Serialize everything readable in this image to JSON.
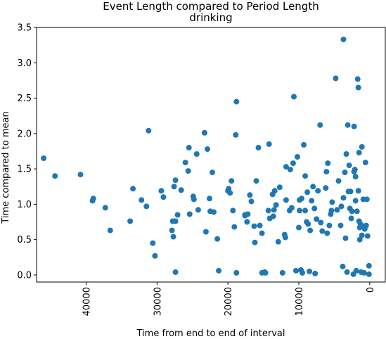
{
  "chart_data": {
    "type": "scatter",
    "title": "Event Length compared to Period Length",
    "subtitle": "drinking",
    "xlabel": "Time from end to end of interval",
    "ylabel": "Time compared to mean",
    "xlim": [
      47000,
      -2200
    ],
    "ylim": [
      -0.1,
      3.5
    ],
    "x_ticks": [
      40000,
      30000,
      20000,
      10000,
      0
    ],
    "x_tick_labels": [
      "40000",
      "30000",
      "20000",
      "10000",
      "0"
    ],
    "y_ticks": [
      0.0,
      0.5,
      1.0,
      1.5,
      2.0,
      2.5,
      3.0,
      3.5
    ],
    "y_tick_labels": [
      "0.0",
      "0.5",
      "1.0",
      "1.5",
      "2.0",
      "2.5",
      "3.0",
      "3.5"
    ],
    "marker_color": "#1f77b4",
    "grid": false,
    "points": [
      [
        46000,
        1.65
      ],
      [
        44400,
        1.4
      ],
      [
        40800,
        1.42
      ],
      [
        39000,
        1.08
      ],
      [
        39100,
        1.05
      ],
      [
        37300,
        0.95
      ],
      [
        36600,
        0.63
      ],
      [
        33800,
        0.76
      ],
      [
        33400,
        1.22
      ],
      [
        32200,
        1.06
      ],
      [
        31500,
        0.97
      ],
      [
        31200,
        2.04
      ],
      [
        30600,
        0.45
      ],
      [
        30300,
        0.27
      ],
      [
        29400,
        1.19
      ],
      [
        29100,
        1.1
      ],
      [
        27800,
        0.76
      ],
      [
        27900,
        0.63
      ],
      [
        27700,
        0.54
      ],
      [
        27600,
        1.25
      ],
      [
        27400,
        1.34
      ],
      [
        27100,
        0.85
      ],
      [
        26600,
        1.2
      ],
      [
        27400,
        0.76
      ],
      [
        27400,
        0.04
      ],
      [
        26000,
        1.59
      ],
      [
        25500,
        1.8
      ],
      [
        25600,
        1.47
      ],
      [
        25400,
        0.86
      ],
      [
        24900,
        1.11
      ],
      [
        24800,
        1.07
      ],
      [
        24200,
        0.92
      ],
      [
        24400,
        1.71
      ],
      [
        23300,
        2.01
      ],
      [
        23100,
        0.61
      ],
      [
        22900,
        1.78
      ],
      [
        22600,
        1.08
      ],
      [
        22500,
        0.9
      ],
      [
        22200,
        1.45
      ],
      [
        22000,
        0.89
      ],
      [
        21500,
        0.51
      ],
      [
        21300,
        0.06
      ],
      [
        20000,
        1.19
      ],
      [
        19900,
        1.22
      ],
      [
        19700,
        1.16
      ],
      [
        19500,
        1.33
      ],
      [
        19300,
        0.91
      ],
      [
        19100,
        0.68
      ],
      [
        18800,
        2.45
      ],
      [
        18900,
        1.98
      ],
      [
        18800,
        0.03
      ],
      [
        17600,
        0.84
      ],
      [
        17600,
        0.85
      ],
      [
        17200,
        0.86
      ],
      [
        17300,
        0.75
      ],
      [
        16900,
        1.13
      ],
      [
        16700,
        1.04
      ],
      [
        16300,
        0.69
      ],
      [
        16200,
        0.46
      ],
      [
        16000,
        1.33
      ],
      [
        15700,
        1.8
      ],
      [
        15500,
        0.7
      ],
      [
        15200,
        0.59
      ],
      [
        15200,
        0.03
      ],
      [
        14800,
        0.04
      ],
      [
        14700,
        0.03
      ],
      [
        14300,
        0.91
      ],
      [
        14200,
        1.85
      ],
      [
        14100,
        0.8
      ],
      [
        13700,
        1.14
      ],
      [
        13600,
        0.83
      ],
      [
        13500,
        0.92
      ],
      [
        13400,
        1.19
      ],
      [
        13200,
        0.99
      ],
      [
        12900,
        0.47
      ],
      [
        12700,
        1.24
      ],
      [
        12300,
        0.03
      ],
      [
        12000,
        0.57
      ],
      [
        11900,
        0.53
      ],
      [
        11800,
        1.06
      ],
      [
        11800,
        1.53
      ],
      [
        11300,
        0.91
      ],
      [
        11200,
        1.49
      ],
      [
        11000,
        0.95
      ],
      [
        10800,
        1.58
      ],
      [
        10700,
        2.52
      ],
      [
        10400,
        0.06
      ],
      [
        10200,
        1.67
      ],
      [
        10000,
        0.67
      ],
      [
        9900,
        0.91
      ],
      [
        9900,
        1.06
      ],
      [
        9700,
        0.07
      ],
      [
        9600,
        1.08
      ],
      [
        9500,
        0.03
      ],
      [
        9300,
        1.84
      ],
      [
        9100,
        0.91
      ],
      [
        9100,
        1.4
      ],
      [
        8900,
        0.75
      ],
      [
        8800,
        1.17
      ],
      [
        8700,
        0.72
      ],
      [
        8500,
        0.05
      ],
      [
        8400,
        0.63
      ],
      [
        8200,
        1.05
      ],
      [
        8000,
        1.25
      ],
      [
        7800,
        0.94
      ],
      [
        7700,
        0.02
      ],
      [
        7500,
        0.79
      ],
      [
        7300,
        1.19
      ],
      [
        7000,
        2.12
      ],
      [
        6900,
        0.74
      ],
      [
        6700,
        0.62
      ],
      [
        6200,
        1.23
      ],
      [
        6100,
        1.46
      ],
      [
        6000,
        0.59
      ],
      [
        5900,
        1.58
      ],
      [
        5700,
        0.7
      ],
      [
        5500,
        0.86
      ],
      [
        5400,
        0.91
      ],
      [
        5300,
        1.03
      ],
      [
        4800,
        2.78
      ],
      [
        4600,
        0.92
      ],
      [
        4400,
        1.33
      ],
      [
        4100,
        0.7
      ],
      [
        4000,
        0.97
      ],
      [
        3800,
        0.12
      ],
      [
        3700,
        1.09
      ],
      [
        3700,
        3.33
      ],
      [
        3500,
        1.45
      ],
      [
        3400,
        0.52
      ],
      [
        3300,
        1.71
      ],
      [
        3200,
        0.04
      ],
      [
        3100,
        2.12
      ],
      [
        3000,
        1.18
      ],
      [
        2900,
        1.55
      ],
      [
        2800,
        0.94
      ],
      [
        2700,
        1.18
      ],
      [
        2600,
        0.8
      ],
      [
        2500,
        0.9
      ],
      [
        2300,
        0.01
      ],
      [
        2200,
        1.46
      ],
      [
        2200,
        2.1
      ],
      [
        2100,
        1.49
      ],
      [
        2000,
        1.39
      ],
      [
        2000,
        1.05
      ],
      [
        1900,
        0.06
      ],
      [
        1800,
        0.9
      ],
      [
        1700,
        2.77
      ],
      [
        1600,
        2.65
      ],
      [
        1600,
        1.19
      ],
      [
        1500,
        0.76
      ],
      [
        1500,
        1.73
      ],
      [
        1400,
        0.67
      ],
      [
        1400,
        0.5
      ],
      [
        1300,
        0.72
      ],
      [
        1200,
        0.04
      ],
      [
        1100,
        1.81
      ],
      [
        1100,
        0.56
      ],
      [
        1000,
        0.69
      ],
      [
        900,
        1.07
      ],
      [
        800,
        0.03
      ],
      [
        700,
        0.65
      ],
      [
        600,
        1.59
      ],
      [
        500,
        0.7
      ],
      [
        400,
        1.07
      ],
      [
        300,
        0.55
      ],
      [
        100,
        0.13
      ],
      [
        100,
        0.01
      ]
    ]
  }
}
